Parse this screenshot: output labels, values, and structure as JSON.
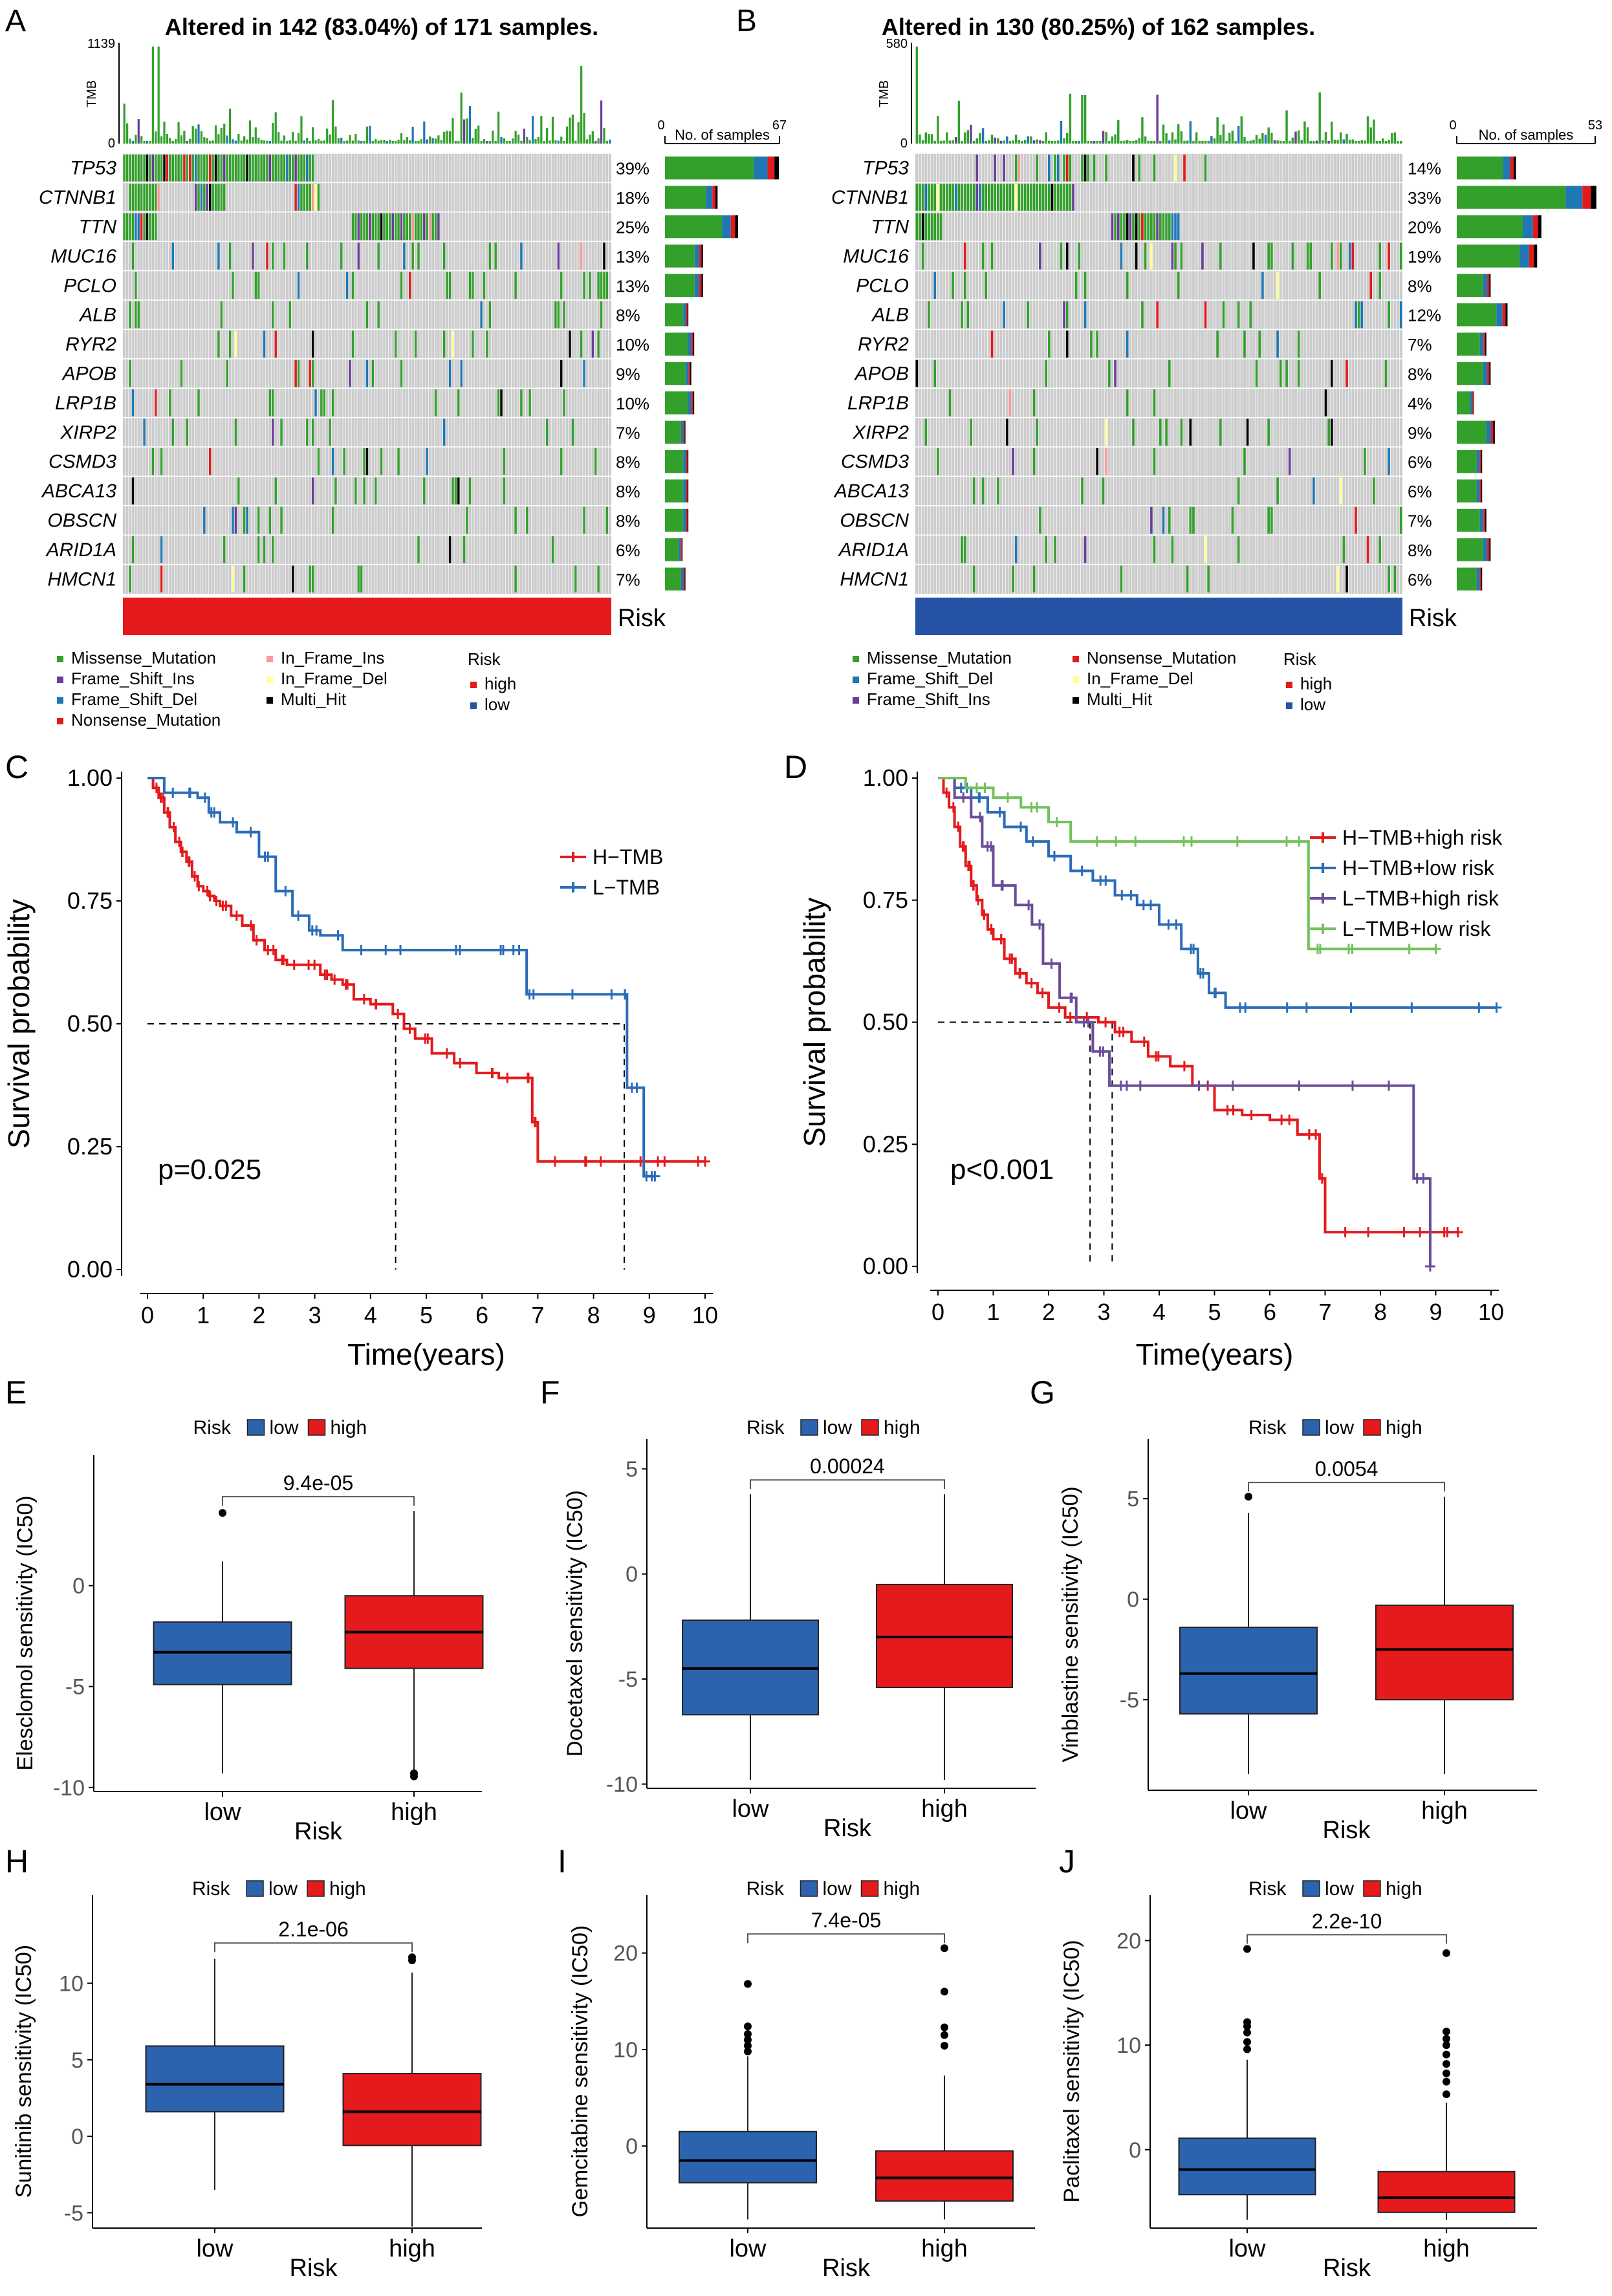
{
  "figure": {
    "colors": {
      "missense": "#33A02C",
      "frame_shift_ins": "#6A3D9A",
      "frame_shift_del": "#1F78B4",
      "nonsense": "#E31A1C",
      "in_frame_ins": "#FB9A99",
      "in_frame_del": "#FFFF99",
      "multi_hit": "#000000",
      "grey": "#CCCCCC",
      "risk_high": "#E41A1C",
      "risk_low": "#2653A3",
      "box_low": "#2C63AF",
      "box_high": "#E41A1C"
    }
  },
  "chart_data": [
    {
      "id": "A",
      "type": "oncoplot",
      "panel_label": "A",
      "title": "Altered in 142 (83.04%) of 171 samples.",
      "tmb_axis_label": "TMB",
      "tmb_max_label": "1139",
      "tmb_min_label": "0",
      "bar_axis_min": "0",
      "bar_axis_max": "67",
      "bar_axis_label": "No. of samples",
      "annotation_label": "Risk",
      "annotation_group": "high",
      "genes": [
        {
          "name": "TP53",
          "pct": "39%"
        },
        {
          "name": "CTNNB1",
          "pct": "18%"
        },
        {
          "name": "TTN",
          "pct": "25%"
        },
        {
          "name": "MUC16",
          "pct": "13%"
        },
        {
          "name": "PCLO",
          "pct": "13%"
        },
        {
          "name": "ALB",
          "pct": "8%"
        },
        {
          "name": "RYR2",
          "pct": "10%"
        },
        {
          "name": "APOB",
          "pct": "9%"
        },
        {
          "name": "LRP1B",
          "pct": "10%"
        },
        {
          "name": "XIRP2",
          "pct": "7%"
        },
        {
          "name": "CSMD3",
          "pct": "8%"
        },
        {
          "name": "ABCA13",
          "pct": "8%"
        },
        {
          "name": "OBSCN",
          "pct": "8%"
        },
        {
          "name": "ARID1A",
          "pct": "6%"
        },
        {
          "name": "HMCN1",
          "pct": "7%"
        }
      ],
      "legend": {
        "col1": [
          "Missense_Mutation",
          "Frame_Shift_Ins",
          "Frame_Shift_Del",
          "Nonsense_Mutation"
        ],
        "col2": [
          "In_Frame_Ins",
          "In_Frame_Del",
          "Multi_Hit"
        ],
        "risk_title": "Risk",
        "risk_items": [
          "high",
          "low"
        ]
      }
    },
    {
      "id": "B",
      "type": "oncoplot",
      "panel_label": "B",
      "title": "Altered in 130 (80.25%) of 162 samples.",
      "tmb_axis_label": "TMB",
      "tmb_max_label": "580",
      "tmb_min_label": "0",
      "bar_axis_min": "0",
      "bar_axis_max": "53",
      "bar_axis_label": "No. of samples",
      "annotation_label": "Risk",
      "annotation_group": "low",
      "genes": [
        {
          "name": "TP53",
          "pct": "14%"
        },
        {
          "name": "CTNNB1",
          "pct": "33%"
        },
        {
          "name": "TTN",
          "pct": "20%"
        },
        {
          "name": "MUC16",
          "pct": "19%"
        },
        {
          "name": "PCLO",
          "pct": "8%"
        },
        {
          "name": "ALB",
          "pct": "12%"
        },
        {
          "name": "RYR2",
          "pct": "7%"
        },
        {
          "name": "APOB",
          "pct": "8%"
        },
        {
          "name": "LRP1B",
          "pct": "4%"
        },
        {
          "name": "XIRP2",
          "pct": "9%"
        },
        {
          "name": "CSMD3",
          "pct": "6%"
        },
        {
          "name": "ABCA13",
          "pct": "6%"
        },
        {
          "name": "OBSCN",
          "pct": "7%"
        },
        {
          "name": "ARID1A",
          "pct": "8%"
        },
        {
          "name": "HMCN1",
          "pct": "6%"
        }
      ],
      "legend": {
        "col1": [
          "Missense_Mutation",
          "Frame_Shift_Del",
          "Frame_Shift_Ins"
        ],
        "col2": [
          "Nonsense_Mutation",
          "In_Frame_Del",
          "Multi_Hit"
        ],
        "risk_title": "Risk",
        "risk_items": [
          "high",
          "low"
        ]
      }
    },
    {
      "id": "C",
      "type": "line",
      "subtype": "kaplan-meier",
      "panel_label": "C",
      "xlabel": "Time(years)",
      "ylabel": "Survival probability",
      "xlim": [
        0,
        10
      ],
      "ylim": [
        0,
        1
      ],
      "xticks": [
        0,
        1,
        2,
        3,
        4,
        5,
        6,
        7,
        8,
        9,
        10
      ],
      "yticks": [
        "0.00",
        "0.25",
        "0.50",
        "0.75",
        "1.00"
      ],
      "pvalue": "p=0.025",
      "legend_position": "top-right",
      "median_lines": [
        4.45,
        8.55
      ],
      "series": [
        {
          "name": "H−TMB",
          "color": "#E41A1C",
          "x": [
            0,
            0.1,
            0.2,
            0.3,
            0.4,
            0.5,
            0.6,
            0.7,
            0.8,
            0.9,
            1.0,
            1.1,
            1.2,
            1.3,
            1.5,
            1.7,
            1.9,
            2.1,
            2.3,
            2.5,
            2.8,
            3.1,
            3.3,
            3.5,
            3.7,
            4.0,
            4.4,
            4.6,
            4.8,
            5.1,
            5.5,
            5.9,
            6.3,
            6.7,
            6.9,
            7.0,
            7.5,
            8.0,
            8.5,
            9.0,
            9.5,
            10.0
          ],
          "y": [
            1.0,
            0.98,
            0.96,
            0.93,
            0.9,
            0.87,
            0.85,
            0.83,
            0.8,
            0.78,
            0.77,
            0.76,
            0.75,
            0.74,
            0.72,
            0.7,
            0.67,
            0.65,
            0.63,
            0.62,
            0.62,
            0.6,
            0.59,
            0.58,
            0.55,
            0.54,
            0.52,
            0.49,
            0.47,
            0.44,
            0.42,
            0.4,
            0.39,
            0.39,
            0.3,
            0.22,
            0.22,
            0.22,
            0.22,
            0.22,
            0.22,
            0.22
          ]
        },
        {
          "name": "L−TMB",
          "color": "#2B6CB8",
          "x": [
            0,
            0.3,
            0.6,
            0.9,
            1.1,
            1.3,
            1.6,
            2.0,
            2.3,
            2.6,
            2.9,
            3.1,
            3.5,
            4.0,
            5.0,
            6.0,
            6.5,
            6.8,
            7.0,
            8.0,
            8.5,
            8.6,
            8.9,
            9.1
          ],
          "y": [
            1.0,
            0.97,
            0.97,
            0.96,
            0.93,
            0.91,
            0.89,
            0.84,
            0.77,
            0.72,
            0.69,
            0.68,
            0.65,
            0.65,
            0.65,
            0.65,
            0.65,
            0.56,
            0.56,
            0.56,
            0.56,
            0.37,
            0.19,
            0.19
          ]
        }
      ]
    },
    {
      "id": "D",
      "type": "line",
      "subtype": "kaplan-meier",
      "panel_label": "D",
      "xlabel": "Time(years)",
      "ylabel": "Survival probability",
      "xlim": [
        0,
        10
      ],
      "ylim": [
        0,
        1
      ],
      "xticks": [
        0,
        1,
        2,
        3,
        4,
        5,
        6,
        7,
        8,
        9,
        10
      ],
      "yticks": [
        "0.00",
        "0.25",
        "0.50",
        "0.75",
        "1.00"
      ],
      "pvalue": "p<0.001",
      "legend_position": "top-right",
      "median_lines": [
        2.75,
        3.15
      ],
      "series": [
        {
          "name": "H−TMB+high risk",
          "color": "#E41A1C",
          "x": [
            0,
            0.1,
            0.2,
            0.3,
            0.4,
            0.5,
            0.6,
            0.7,
            0.8,
            0.9,
            1.0,
            1.2,
            1.4,
            1.6,
            1.8,
            2.0,
            2.3,
            2.6,
            2.9,
            3.2,
            3.5,
            3.8,
            4.2,
            4.6,
            5.0,
            5.5,
            6.0,
            6.5,
            6.8,
            6.9,
            7.0,
            8.0,
            9.0,
            9.4
          ],
          "y": [
            1.0,
            0.97,
            0.94,
            0.9,
            0.86,
            0.82,
            0.78,
            0.75,
            0.72,
            0.69,
            0.67,
            0.63,
            0.6,
            0.58,
            0.56,
            0.53,
            0.51,
            0.51,
            0.5,
            0.48,
            0.46,
            0.43,
            0.41,
            0.37,
            0.32,
            0.31,
            0.3,
            0.27,
            0.27,
            0.18,
            0.07,
            0.07,
            0.07,
            0.07
          ]
        },
        {
          "name": "H−TMB+low risk",
          "color": "#2B6CB8",
          "x": [
            0,
            0.3,
            0.6,
            0.9,
            1.2,
            1.6,
            2.0,
            2.4,
            2.8,
            3.2,
            3.6,
            4.0,
            4.4,
            4.7,
            4.9,
            5.2,
            6.0,
            7.0,
            8.0,
            9.0,
            10.1
          ],
          "y": [
            1.0,
            0.98,
            0.96,
            0.93,
            0.9,
            0.87,
            0.84,
            0.81,
            0.79,
            0.76,
            0.74,
            0.7,
            0.65,
            0.6,
            0.56,
            0.53,
            0.53,
            0.53,
            0.53,
            0.53,
            0.53
          ]
        },
        {
          "name": "L−TMB+high risk",
          "color": "#6B4C9A",
          "x": [
            0,
            0.3,
            0.6,
            0.8,
            1.0,
            1.4,
            1.7,
            1.9,
            2.2,
            2.5,
            2.8,
            3.1,
            3.5,
            4.0,
            5.0,
            6.0,
            7.0,
            8.0,
            8.6,
            8.9
          ],
          "y": [
            1.0,
            0.96,
            0.92,
            0.86,
            0.78,
            0.74,
            0.7,
            0.62,
            0.55,
            0.5,
            0.44,
            0.37,
            0.37,
            0.37,
            0.37,
            0.37,
            0.37,
            0.37,
            0.18,
            0.0
          ]
        },
        {
          "name": "L−TMB+low risk",
          "color": "#73C15C",
          "x": [
            0,
            0.5,
            1.0,
            1.5,
            2.0,
            2.4,
            3.0,
            4.0,
            5.0,
            6.0,
            6.7,
            7.0,
            8.0,
            9.0
          ],
          "y": [
            1.0,
            0.98,
            0.96,
            0.94,
            0.91,
            0.87,
            0.87,
            0.87,
            0.87,
            0.87,
            0.65,
            0.65,
            0.65,
            0.65
          ]
        }
      ]
    },
    {
      "id": "E",
      "type": "box",
      "panel_label": "E",
      "legend_title": "Risk",
      "legend_items": [
        "low",
        "high"
      ],
      "ylabel": "Elesclomol sensitivity (IC50)",
      "xlabel": "Risk",
      "categories": [
        "low",
        "high"
      ],
      "pvalue": "9.4e-05",
      "ylim": [
        -10.2,
        5.5
      ],
      "yticks": [
        -10,
        -5,
        0
      ],
      "boxes": [
        {
          "group": "low",
          "min": -9.3,
          "q1": -4.9,
          "median": -3.3,
          "q3": -1.8,
          "max": 1.2,
          "outliers": [
            3.6
          ]
        },
        {
          "group": "high",
          "min": -9.2,
          "q1": -4.1,
          "median": -2.3,
          "q3": -0.5,
          "max": 3.7,
          "outliers": [
            -9.3,
            -9.45
          ]
        }
      ]
    },
    {
      "id": "F",
      "type": "box",
      "panel_label": "F",
      "legend_title": "Risk",
      "legend_items": [
        "low",
        "high"
      ],
      "ylabel": "Docetaxel sensitivity (IC50)",
      "xlabel": "Risk",
      "categories": [
        "low",
        "high"
      ],
      "pvalue": "0.00024",
      "ylim": [
        -10.2,
        5.5
      ],
      "yticks": [
        -10,
        -5,
        0,
        5
      ],
      "boxes": [
        {
          "group": "low",
          "min": -9.8,
          "q1": -6.7,
          "median": -4.5,
          "q3": -2.2,
          "max": 3.8,
          "outliers": []
        },
        {
          "group": "high",
          "min": -9.8,
          "q1": -5.4,
          "median": -3.0,
          "q3": -0.5,
          "max": 3.8,
          "outliers": []
        }
      ]
    },
    {
      "id": "G",
      "type": "box",
      "panel_label": "G",
      "legend_title": "Risk",
      "legend_items": [
        "low",
        "high"
      ],
      "ylabel": "Vinblastine sensitivity (IC50)",
      "xlabel": "Risk",
      "categories": [
        "low",
        "high"
      ],
      "pvalue": "0.0054",
      "ylim": [
        -9.5,
        7.0
      ],
      "yticks": [
        -5,
        0,
        5
      ],
      "boxes": [
        {
          "group": "low",
          "min": -8.7,
          "q1": -5.7,
          "median": -3.7,
          "q3": -1.4,
          "max": 4.3,
          "outliers": [
            5.1
          ]
        },
        {
          "group": "high",
          "min": -8.7,
          "q1": -5.0,
          "median": -2.5,
          "q3": -0.3,
          "max": 5.1,
          "outliers": []
        }
      ]
    },
    {
      "id": "H",
      "type": "box",
      "panel_label": "H",
      "legend_title": "Risk",
      "legend_items": [
        "low",
        "high"
      ],
      "ylabel": "Sunitinib sensitivity (IC50)",
      "xlabel": "Risk",
      "categories": [
        "low",
        "high"
      ],
      "pvalue": "2.1e-06",
      "ylim": [
        -6.0,
        14.5
      ],
      "yticks": [
        -5,
        0,
        5,
        10
      ],
      "boxes": [
        {
          "group": "low",
          "min": -3.5,
          "q1": 1.6,
          "median": 3.4,
          "q3": 5.9,
          "max": 11.6,
          "outliers": []
        },
        {
          "group": "high",
          "min": -5.9,
          "q1": -0.6,
          "median": 1.6,
          "q3": 4.1,
          "max": 10.7,
          "outliers": [
            11.5,
            11.7
          ]
        }
      ]
    },
    {
      "id": "I",
      "type": "box",
      "panel_label": "I",
      "legend_title": "Risk",
      "legend_items": [
        "low",
        "high"
      ],
      "ylabel": "Gemcitabine sensitivity (IC50)",
      "xlabel": "Risk",
      "categories": [
        "low",
        "high"
      ],
      "pvalue": "7.4e-05",
      "ylim": [
        -8.5,
        24.0
      ],
      "yticks": [
        0,
        10,
        20
      ],
      "boxes": [
        {
          "group": "low",
          "min": -7.6,
          "q1": -3.8,
          "median": -1.5,
          "q3": 1.5,
          "max": 9.3,
          "outliers": [
            9.8,
            10.4,
            11.0,
            11.6,
            12.4,
            16.8
          ]
        },
        {
          "group": "high",
          "min": -7.6,
          "q1": -5.7,
          "median": -3.3,
          "q3": -0.5,
          "max": 7.3,
          "outliers": [
            10.4,
            11.5,
            12.3,
            16.0,
            20.5
          ]
        }
      ]
    },
    {
      "id": "J",
      "type": "box",
      "panel_label": "J",
      "legend_title": "Risk",
      "legend_items": [
        "low",
        "high"
      ],
      "ylabel": "Paclitaxel sensitivity (IC50)",
      "xlabel": "Risk",
      "categories": [
        "low",
        "high"
      ],
      "pvalue": "2.2e-10",
      "ylim": [
        -7.5,
        22.5
      ],
      "yticks": [
        0,
        10,
        20
      ],
      "boxes": [
        {
          "group": "low",
          "min": -6.7,
          "q1": -4.3,
          "median": -1.9,
          "q3": 1.1,
          "max": 8.6,
          "outliers": [
            9.6,
            10.3,
            11.2,
            11.8,
            12.2,
            19.2
          ]
        },
        {
          "group": "high",
          "min": -6.7,
          "q1": -6.0,
          "median": -4.6,
          "q3": -2.1,
          "max": 4.5,
          "outliers": [
            5.3,
            6.5,
            7.3,
            8.2,
            9.1,
            10.0,
            10.6,
            11.3,
            18.8
          ]
        }
      ]
    }
  ]
}
